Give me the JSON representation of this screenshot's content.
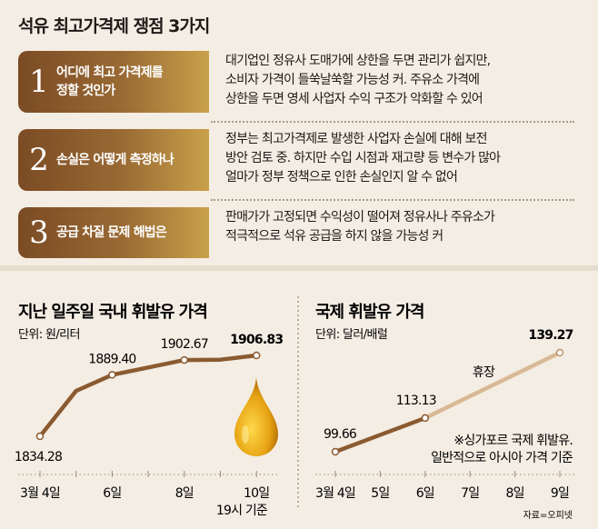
{
  "title": "석유 최고가격제 쟁점 3가지",
  "issues": [
    {
      "number": "1",
      "question": "어디에 최고 가격제를\n정할 것인가",
      "answer": "대기업인 정유사 도매가에 상한을 두면 관리가 쉽지만,\n소비자 가격이 들쑥날쑥할 가능성 커. 주유소 가격에\n상한을 두면 영세 사업자 수익 구조가 악화할 수 있어"
    },
    {
      "number": "2",
      "question": "손실은 어떻게 측정하나",
      "answer": "정부는 최고가격제로 발생한 사업자 손실에 대해 보전\n방안 검토 중. 하지만 수입 시점과 재고량 등 변수가 많아\n얼마가 정부 정책으로 인한 손실인지 알 수 없어"
    },
    {
      "number": "3",
      "question": "공급 차질 문제 해법은",
      "answer": "판매가가 고정되면 수익성이 떨어져 정유사나 주유소가\n적극적으로 석유 공급을 하지 않을 가능성 커"
    }
  ],
  "colors": {
    "box_dark": "#7b4b24",
    "box_light": "#c9a14a",
    "line": "#8a5a30",
    "line_closed": "#d8b995",
    "background": "#f4ede3"
  },
  "chart_data": [
    {
      "type": "line",
      "title": "지난 일주일 국내 휘발유 가격",
      "unit": "단위: 원/리터",
      "x": [
        4,
        5,
        6,
        7,
        8,
        9,
        10
      ],
      "tick_labels": [
        "3월 4일",
        "",
        "6일",
        "",
        "8일",
        "",
        "10일"
      ],
      "values": [
        1834.28,
        1875,
        1889.4,
        1896,
        1902.67,
        1903,
        1906.83
      ],
      "data_labels": [
        "1834.28",
        "",
        "1889.40",
        "",
        "1902.67",
        "",
        "1906.83"
      ],
      "note": "19시 기준",
      "decoration": "oil-drop-icon"
    },
    {
      "type": "line",
      "title": "국제 휘발유 가격",
      "unit": "단위: 달러/배럴",
      "x": [
        4,
        5,
        6,
        7,
        8,
        9
      ],
      "tick_labels": [
        "3월 4일",
        "5일",
        "6일",
        "7일",
        "8일",
        "9일"
      ],
      "points": [
        {
          "x": 4,
          "y": 99.66,
          "label": "99.66"
        },
        {
          "x": 6,
          "y": 113.13,
          "label": "113.13"
        },
        {
          "x": 9,
          "y": 139.27,
          "label": "139.27"
        }
      ],
      "closed_annotation": "휴장",
      "note": "※싱가포르 국제 휘발유.\n일반적으로 아시아 가격 기준",
      "source": "자료=오피넷"
    }
  ]
}
